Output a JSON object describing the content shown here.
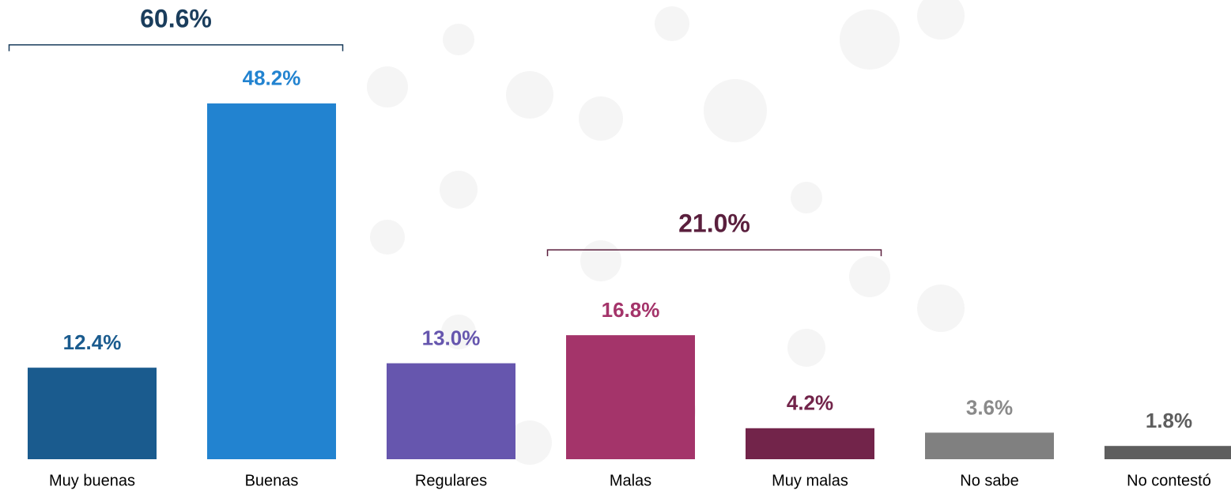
{
  "chart_data": {
    "type": "bar",
    "categories": [
      "Muy buenas",
      "Buenas",
      "Regulares",
      "Malas",
      "Muy malas",
      "No sabe",
      "No contestó"
    ],
    "values": [
      12.4,
      48.2,
      13.0,
      16.8,
      4.2,
      3.6,
      1.8
    ],
    "value_labels": [
      "12.4%",
      "48.2%",
      "13.0%",
      "16.8%",
      "4.2%",
      "3.6%",
      "1.8%"
    ],
    "colors": [
      "#1a5b8e",
      "#2283d0",
      "#6656ae",
      "#a4346a",
      "#72244a",
      "#808080",
      "#5e5e5e"
    ],
    "label_colors": [
      "#1a5b8e",
      "#2283d0",
      "#6656ae",
      "#a4346a",
      "#72244a",
      "#8a8a8a",
      "#5e5e5e"
    ],
    "ylim": [
      0,
      50
    ],
    "annotations": [
      {
        "text": "60.6%",
        "categories": [
          0,
          1
        ],
        "color": "#1a3d5c"
      },
      {
        "text": "21.0%",
        "categories": [
          3,
          4
        ],
        "color": "#5a1f3d"
      }
    ]
  }
}
